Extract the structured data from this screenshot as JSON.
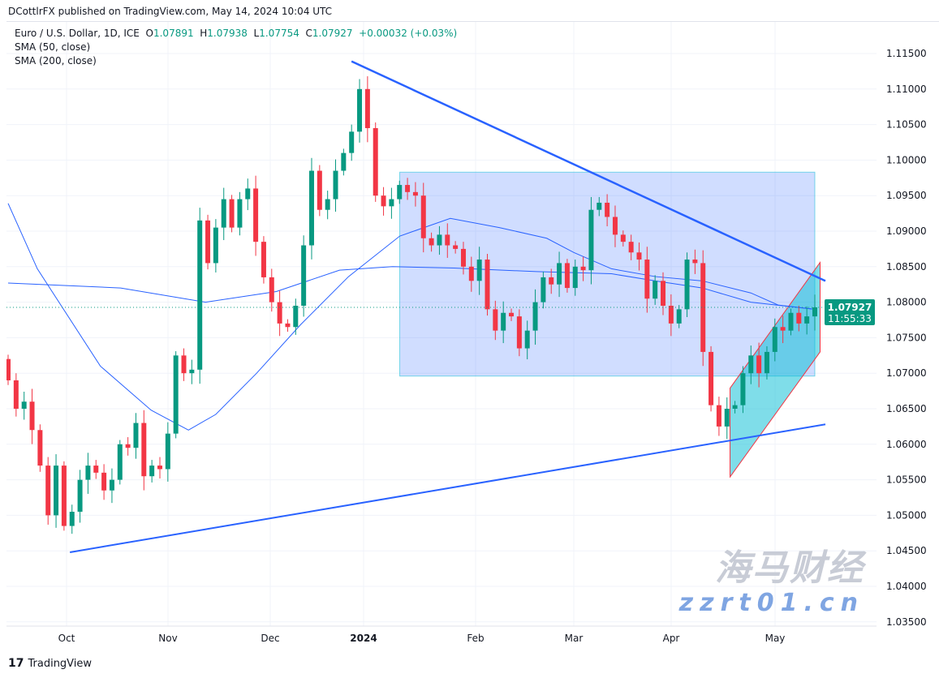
{
  "header": {
    "published": "DCottlrFX published on TradingView.com, May 14, 2024 10:04 UTC"
  },
  "legend": {
    "symbol": "Euro / U.S. Dollar, 1D, ICE",
    "o_label": "O",
    "o": "1.07891",
    "h_label": "H",
    "h": "1.07938",
    "l_label": "L",
    "l": "1.07754",
    "c_label": "C",
    "c": "1.07927",
    "change": "+0.00032 (+0.03%)",
    "sma50": "SMA (50, close)",
    "sma200": "SMA (200, close)"
  },
  "price_label": {
    "price": "1.07927",
    "countdown": "11:55:33",
    "color": "#089981"
  },
  "footer": {
    "brand": "TradingView"
  },
  "watermark": {
    "cn": "海马财经",
    "url": "zzrt01.cn"
  },
  "colors": {
    "up": "#089981",
    "down": "#f23645",
    "sma": "#2962ff",
    "trend": "#2962ff",
    "rect": "#2962ff",
    "channel": "#00bcd4"
  },
  "chart_data": {
    "type": "candlestick",
    "title": "Euro / U.S. Dollar, 1D, ICE",
    "start_date": "2023-09-18",
    "end_date": "2024-05-14",
    "ylim": [
      1.0335,
      1.1165
    ],
    "yticks": [
      "1.03500",
      "1.04000",
      "1.04500",
      "1.05000",
      "1.05500",
      "1.06000",
      "1.06500",
      "1.07000",
      "1.07500",
      "1.08000",
      "1.08500",
      "1.09000",
      "1.09500",
      "1.10000",
      "1.10500",
      "1.11000",
      "1.11500"
    ],
    "xticks": [
      {
        "label": "Oct",
        "date": "2023-10-02"
      },
      {
        "label": "Nov",
        "date": "2023-11-01"
      },
      {
        "label": "Dec",
        "date": "2023-12-01"
      },
      {
        "label": "2024",
        "date": "2024-01-01"
      },
      {
        "label": "Feb",
        "date": "2024-02-01"
      },
      {
        "label": "Mar",
        "date": "2024-03-01"
      },
      {
        "label": "Apr",
        "date": "2024-04-01"
      },
      {
        "label": "May",
        "date": "2024-05-01"
      }
    ],
    "first_open": 1.072,
    "closes": [
      1.069,
      1.065,
      1.066,
      1.062,
      1.057,
      1.05,
      1.057,
      1.0485,
      1.0505,
      1.055,
      1.057,
      1.056,
      1.0535,
      1.055,
      1.06,
      1.0595,
      1.063,
      1.0555,
      1.057,
      1.0565,
      1.0615,
      1.0725,
      1.07,
      1.0705,
      1.0915,
      1.0855,
      1.0905,
      1.0945,
      1.0905,
      1.0945,
      1.096,
      1.0885,
      1.0835,
      1.08,
      1.077,
      1.0765,
      1.0795,
      1.088,
      1.0985,
      1.093,
      1.0945,
      1.0985,
      1.101,
      1.104,
      1.11,
      1.1045,
      1.095,
      1.0935,
      1.0945,
      1.0965,
      1.0955,
      1.095,
      1.089,
      1.088,
      1.0895,
      1.088,
      1.0875,
      1.085,
      1.083,
      1.086,
      1.079,
      1.076,
      1.0785,
      1.078,
      1.0735,
      1.076,
      1.08,
      1.0835,
      1.0825,
      1.0855,
      1.082,
      1.085,
      1.0845,
      1.093,
      1.094,
      1.092,
      1.0895,
      1.0885,
      1.087,
      1.086,
      1.0805,
      1.083,
      1.0795,
      1.077,
      1.079,
      1.086,
      1.0855,
      1.073,
      1.0655,
      1.0625,
      1.065,
      1.0655,
      1.07,
      1.0725,
      1.07,
      1.073,
      1.0765,
      1.076,
      1.0785,
      1.077,
      1.078,
      1.07927
    ],
    "sma50": [
      [
        "2023-09-18",
        1.0939
      ],
      [
        "2023-09-25",
        1.0847
      ],
      [
        "2023-10-12",
        1.071
      ],
      [
        "2023-10-27",
        1.0648
      ],
      [
        "2023-11-07",
        1.062
      ],
      [
        "2023-11-15",
        1.0642
      ],
      [
        "2023-11-27",
        1.07
      ],
      [
        "2023-12-11",
        1.0768
      ],
      [
        "2023-12-27",
        1.0836
      ],
      [
        "2024-01-11",
        1.0893
      ],
      [
        "2024-01-25",
        1.0918
      ],
      [
        "2024-02-08",
        1.0905
      ],
      [
        "2024-02-22",
        1.089
      ],
      [
        "2024-03-01",
        1.087
      ],
      [
        "2024-03-13",
        1.0847
      ],
      [
        "2024-03-27",
        1.0836
      ],
      [
        "2024-04-10",
        1.083
      ],
      [
        "2024-04-24",
        1.0813
      ],
      [
        "2024-05-02",
        1.0796
      ],
      [
        "2024-05-14",
        1.079
      ]
    ],
    "sma200": [
      [
        "2023-09-18",
        1.0827
      ],
      [
        "2023-10-18",
        1.082
      ],
      [
        "2023-11-12",
        1.08
      ],
      [
        "2023-12-03",
        1.0815
      ],
      [
        "2023-12-24",
        1.0845
      ],
      [
        "2024-01-09",
        1.085
      ],
      [
        "2024-01-26",
        1.0848
      ],
      [
        "2024-02-19",
        1.0843
      ],
      [
        "2024-03-13",
        1.084
      ],
      [
        "2024-03-27",
        1.083
      ],
      [
        "2024-04-10",
        1.082
      ],
      [
        "2024-04-24",
        1.08
      ],
      [
        "2024-05-14",
        1.079
      ]
    ],
    "drawings": {
      "upper_trendline": [
        [
          "2023-12-28",
          1.1139
        ],
        [
          "2024-05-16",
          1.083
        ]
      ],
      "lower_trendline": [
        [
          "2023-10-03",
          1.0448
        ],
        [
          "2024-05-16",
          1.0628
        ]
      ],
      "range_box": [
        [
          "2024-01-11",
          1.0983
        ],
        [
          "2024-05-14",
          1.0696
        ]
      ],
      "channel": [
        [
          "2024-04-18",
          1.0679
        ],
        [
          "2024-05-15",
          1.0856
        ],
        [
          "2024-05-15",
          1.073
        ],
        [
          "2024-04-18",
          1.0554
        ]
      ]
    }
  }
}
